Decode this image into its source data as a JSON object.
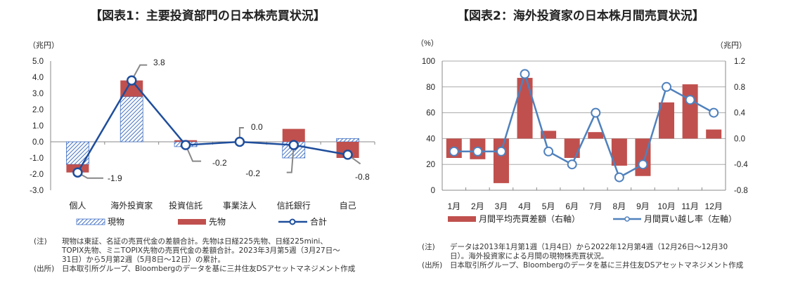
{
  "chart_data": [
    {
      "type": "bar",
      "title": "【図表1：主要投資部門の日本株売買状況】",
      "ylabel": "（兆円）",
      "ylim": [
        -3.0,
        5.0
      ],
      "yticks": [
        "5.0",
        "4.0",
        "3.0",
        "2.0",
        "1.0",
        "0.0",
        "-1.0",
        "-2.0",
        "-3.0"
      ],
      "categories": [
        "個人",
        "海外投資家",
        "投資信託",
        "事業法人",
        "信託銀行",
        "自己"
      ],
      "series": [
        {
          "name": "現物",
          "kind": "stacked-bar-hatched",
          "color": "#4472c4",
          "values": [
            -1.4,
            2.8,
            -0.3,
            0.0,
            -1.0,
            0.2
          ]
        },
        {
          "name": "先物",
          "kind": "stacked-bar",
          "color": "#c0504d",
          "values": [
            -0.5,
            1.0,
            0.1,
            -0.05,
            0.8,
            -1.0
          ]
        },
        {
          "name": "合計",
          "kind": "line",
          "color": "#1f4e9c",
          "values": [
            -1.9,
            3.8,
            -0.2,
            0.0,
            -0.2,
            -0.8
          ],
          "labels": [
            "-1.9",
            "3.8",
            "-0.2",
            "0.0",
            "-0.2",
            "-0.8"
          ]
        }
      ],
      "legend": "bottom",
      "notes": {
        "note_label": "(注)",
        "note_lines": [
          "現物は東証、名証の売買代金の差額合計。先物は日経225先物、日経225mini、",
          "TOPIX先物、ミニTOPIX先物の売買代金の差額合計。2023年3月第5週（3月27日～",
          "31日）から5月第2週（5月8日～12日）の累計。"
        ],
        "source_label": "(出所)",
        "source": "日本取引所グループ、Bloombergのデータを基に三井住友DSアセットマネジメント作成"
      }
    },
    {
      "type": "bar",
      "title": "【図表2：海外投資家の日本株月間売買状況】",
      "ylabel_left": "（%）",
      "ylabel_right": "（兆円）",
      "ylim_left": [
        0,
        100
      ],
      "ylim_right": [
        -0.8,
        1.2
      ],
      "yticks_left": [
        "100",
        "80",
        "60",
        "40",
        "20",
        "0"
      ],
      "yticks_right": [
        "1.2",
        "0.8",
        "0.4",
        "0.0",
        "-0.4",
        "-0.8"
      ],
      "categories": [
        "1月",
        "2月",
        "3月",
        "4月",
        "5月",
        "6月",
        "7月",
        "8月",
        "9月",
        "10月",
        "11月",
        "12月"
      ],
      "series": [
        {
          "name": "月間平均売買差額（右軸）",
          "kind": "bar",
          "axis": "right",
          "color": "#c0504d",
          "values": [
            -0.3,
            -0.32,
            -0.69,
            0.94,
            0.12,
            -0.3,
            0.1,
            -0.42,
            -0.58,
            0.56,
            0.84,
            0.14
          ]
        },
        {
          "name": "月間買い越し率（左軸）",
          "kind": "line",
          "axis": "left",
          "color": "#4f81bd",
          "values": [
            30,
            30,
            30,
            90,
            30,
            20,
            60,
            10,
            20,
            80,
            70,
            60
          ]
        }
      ],
      "grid": true,
      "legend": "bottom",
      "notes": {
        "note_label": "(注)",
        "note_lines": [
          "データは2013年1月第1週（1月4日）から2022年12月第4週（12月26日～12月30",
          "日）。海外投資家による月間の現物株売買状況。"
        ],
        "source_label": "(出所)",
        "source": "日本取引所グループ、Bloombergのデータを基に三井住友DSアセットマネジメント作成"
      }
    }
  ]
}
